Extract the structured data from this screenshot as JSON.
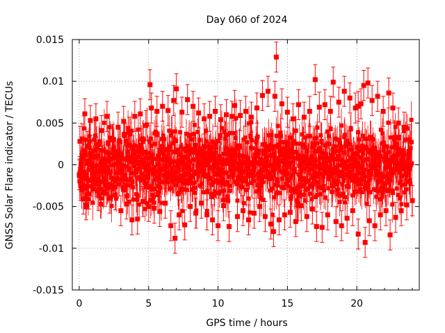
{
  "chart_data": {
    "type": "scatter",
    "title": "Day 060 of 2024",
    "xlabel": "GPS time / hours",
    "ylabel": "GNSS Solar Flare indicator / TECUs",
    "xlim": [
      -0.5,
      24.5
    ],
    "ylim": [
      -0.015,
      0.015
    ],
    "x_ticks": [
      0,
      5,
      10,
      15,
      20
    ],
    "x_tick_labels": [
      "0",
      "5",
      "10",
      "15",
      "20"
    ],
    "y_ticks": [
      -0.015,
      -0.01,
      -0.005,
      0,
      0.005,
      0.01,
      0.015
    ],
    "y_tick_labels": [
      "-0.015",
      "-0.01",
      "-0.005",
      "0",
      "0.005",
      "0.01",
      "0.015"
    ],
    "grid": true,
    "legend": "none",
    "colors": {
      "series": "#ff0000",
      "grid": "#a0a0a0",
      "axis": "#000000"
    },
    "series": [
      {
        "marker": "square",
        "error_bars": "vertical",
        "typical_error": 0.0018,
        "points": [
          [
            0.0,
            -0.0012
          ],
          [
            0.05,
            0.0028
          ],
          [
            0.1,
            -0.0025
          ],
          [
            0.2,
            0.0031
          ],
          [
            0.3,
            -0.0041
          ],
          [
            0.4,
            0.0061
          ],
          [
            0.5,
            -0.0048
          ],
          [
            0.6,
            0.0022
          ],
          [
            0.7,
            -0.0035
          ],
          [
            0.8,
            0.0053
          ],
          [
            1.0,
            -0.0029
          ],
          [
            1.2,
            0.0055
          ],
          [
            1.4,
            -0.0037
          ],
          [
            1.6,
            0.0041
          ],
          [
            1.8,
            -0.0032
          ],
          [
            2.0,
            0.0058
          ],
          [
            2.2,
            -0.004
          ],
          [
            2.4,
            0.003
          ],
          [
            2.6,
            -0.0036
          ],
          [
            2.8,
            0.0045
          ],
          [
            3.0,
            -0.0055
          ],
          [
            3.2,
            0.0052
          ],
          [
            3.4,
            -0.0047
          ],
          [
            3.6,
            0.0039
          ],
          [
            3.8,
            -0.0066
          ],
          [
            4.0,
            0.0058
          ],
          [
            4.2,
            -0.0065
          ],
          [
            4.4,
            0.0061
          ],
          [
            4.6,
            -0.0044
          ],
          [
            4.8,
            0.0047
          ],
          [
            5.0,
            -0.005
          ],
          [
            5.1,
            0.0096
          ],
          [
            5.2,
            0.0068
          ],
          [
            5.4,
            -0.0052
          ],
          [
            5.6,
            0.0064
          ],
          [
            5.8,
            -0.0056
          ],
          [
            6.0,
            0.007
          ],
          [
            6.2,
            -0.0046
          ],
          [
            6.4,
            0.0065
          ],
          [
            6.6,
            -0.0073
          ],
          [
            6.8,
            0.0077
          ],
          [
            6.9,
            -0.0088
          ],
          [
            7.0,
            0.0091
          ],
          [
            7.2,
            -0.006
          ],
          [
            7.4,
            0.0063
          ],
          [
            7.6,
            -0.0072
          ],
          [
            7.8,
            0.0078
          ],
          [
            8.0,
            -0.005
          ],
          [
            8.2,
            0.007
          ],
          [
            8.4,
            -0.0058
          ],
          [
            8.6,
            0.0062
          ],
          [
            8.8,
            -0.0046
          ],
          [
            9.0,
            0.0055
          ],
          [
            9.2,
            -0.006
          ],
          [
            9.4,
            0.0058
          ],
          [
            9.6,
            -0.0066
          ],
          [
            9.8,
            0.0064
          ],
          [
            10.0,
            -0.0073
          ],
          [
            10.2,
            0.0054
          ],
          [
            10.4,
            -0.0049
          ],
          [
            10.6,
            0.006
          ],
          [
            10.8,
            -0.0074
          ],
          [
            11.0,
            0.0058
          ],
          [
            11.2,
            0.0071
          ],
          [
            11.4,
            -0.0062
          ],
          [
            11.6,
            0.0059
          ],
          [
            11.8,
            -0.0055
          ],
          [
            12.0,
            0.0064
          ],
          [
            12.2,
            -0.0066
          ],
          [
            12.4,
            0.0057
          ],
          [
            12.6,
            -0.0058
          ],
          [
            12.8,
            0.0068
          ],
          [
            13.0,
            -0.005
          ],
          [
            13.2,
            0.0083
          ],
          [
            13.4,
            -0.0062
          ],
          [
            13.6,
            0.0088
          ],
          [
            13.8,
            -0.0071
          ],
          [
            14.0,
            -0.008
          ],
          [
            14.1,
            0.0082
          ],
          [
            14.2,
            0.0129
          ],
          [
            14.4,
            -0.0066
          ],
          [
            14.6,
            0.0073
          ],
          [
            14.8,
            -0.006
          ],
          [
            15.0,
            0.0063
          ],
          [
            15.2,
            -0.0057
          ],
          [
            15.4,
            0.0055
          ],
          [
            15.6,
            -0.0068
          ],
          [
            15.8,
            0.0072
          ],
          [
            16.0,
            -0.0049
          ],
          [
            16.2,
            0.0057
          ],
          [
            16.4,
            -0.0062
          ],
          [
            16.6,
            0.0064
          ],
          [
            16.8,
            -0.0053
          ],
          [
            17.0,
            0.0102
          ],
          [
            17.1,
            -0.0074
          ],
          [
            17.3,
            0.0069
          ],
          [
            17.5,
            -0.0075
          ],
          [
            17.7,
            0.0072
          ],
          [
            17.9,
            -0.006
          ],
          [
            18.1,
            0.0064
          ],
          [
            18.3,
            0.0099
          ],
          [
            18.5,
            -0.0068
          ],
          [
            18.7,
            0.0075
          ],
          [
            18.9,
            -0.0073
          ],
          [
            19.1,
            0.0088
          ],
          [
            19.3,
            -0.0064
          ],
          [
            19.5,
            0.008
          ],
          [
            19.7,
            -0.0055
          ],
          [
            19.9,
            0.0068
          ],
          [
            20.1,
            0.007
          ],
          [
            20.1,
            -0.0083
          ],
          [
            20.3,
            0.0073
          ],
          [
            20.5,
            0.0095
          ],
          [
            20.6,
            -0.0093
          ],
          [
            20.8,
            0.0098
          ],
          [
            20.9,
            -0.0067
          ],
          [
            21.1,
            0.0077
          ],
          [
            21.3,
            -0.0073
          ],
          [
            21.5,
            0.0082
          ],
          [
            21.7,
            -0.006
          ],
          [
            21.9,
            0.0064
          ],
          [
            22.1,
            -0.0055
          ],
          [
            22.3,
            0.0086
          ],
          [
            22.4,
            -0.0084
          ],
          [
            22.6,
            0.0068
          ],
          [
            22.8,
            -0.0063
          ],
          [
            23.0,
            0.005
          ],
          [
            23.2,
            -0.0055
          ],
          [
            23.4,
            0.0045
          ],
          [
            23.6,
            -0.0048
          ],
          [
            23.8,
            0.003
          ],
          [
            24.0,
            -0.0043
          ]
        ]
      }
    ]
  }
}
